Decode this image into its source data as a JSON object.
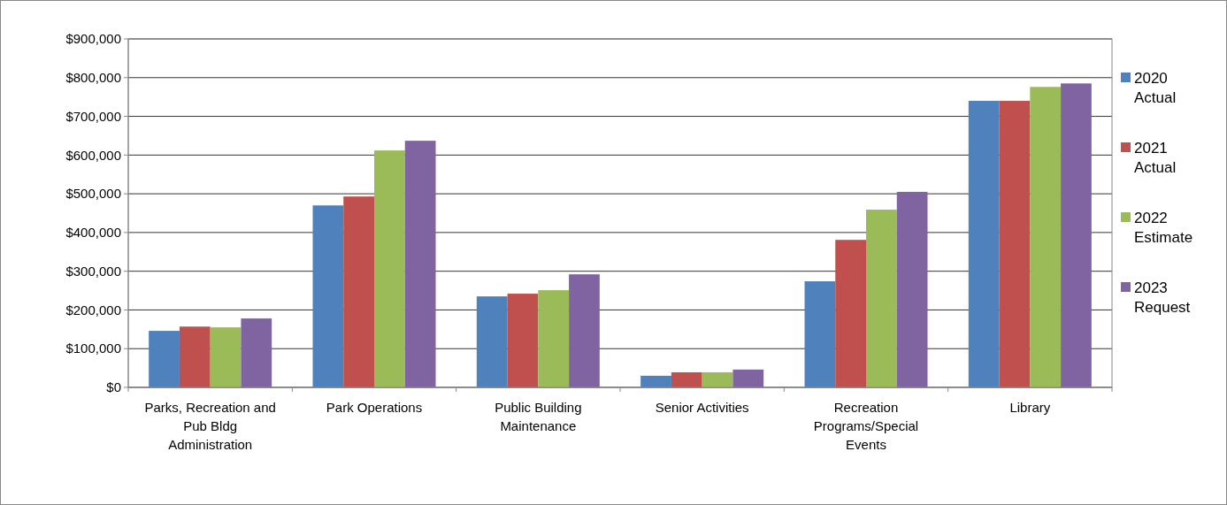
{
  "chart_data": {
    "type": "bar",
    "categories": [
      "Parks, Recreation and Pub Bldg Administration",
      "Park Operations",
      "Public Building Maintenance",
      "Senior Activities",
      "Recreation Programs/Special Events",
      "Library"
    ],
    "series": [
      {
        "name": "2020 Actual",
        "color": "#4f81bd",
        "values": [
          146000,
          470000,
          235000,
          30000,
          274000,
          740000
        ]
      },
      {
        "name": "2021 Actual",
        "color": "#c0504d",
        "values": [
          157000,
          493000,
          242000,
          39000,
          381000,
          740000
        ]
      },
      {
        "name": "2022 Estimate",
        "color": "#9bbb59",
        "values": [
          155000,
          612000,
          251000,
          39000,
          459000,
          776000
        ]
      },
      {
        "name": "2023 Request",
        "color": "#8064a2",
        "values": [
          178000,
          637000,
          292000,
          46000,
          505000,
          785000
        ]
      }
    ],
    "ylim": [
      0,
      900000
    ],
    "yticks": [
      {
        "value": 0,
        "label": "$0"
      },
      {
        "value": 100000,
        "label": "$100,000"
      },
      {
        "value": 200000,
        "label": "$200,000"
      },
      {
        "value": 300000,
        "label": "$300,000"
      },
      {
        "value": 400000,
        "label": "$400,000"
      },
      {
        "value": 500000,
        "label": "$500,000"
      },
      {
        "value": 600000,
        "label": "$600,000"
      },
      {
        "value": 700000,
        "label": "$700,000"
      },
      {
        "value": 800000,
        "label": "$800,000"
      },
      {
        "value": 900000,
        "label": "$900,000"
      }
    ],
    "grid": "y",
    "legend": "right"
  }
}
